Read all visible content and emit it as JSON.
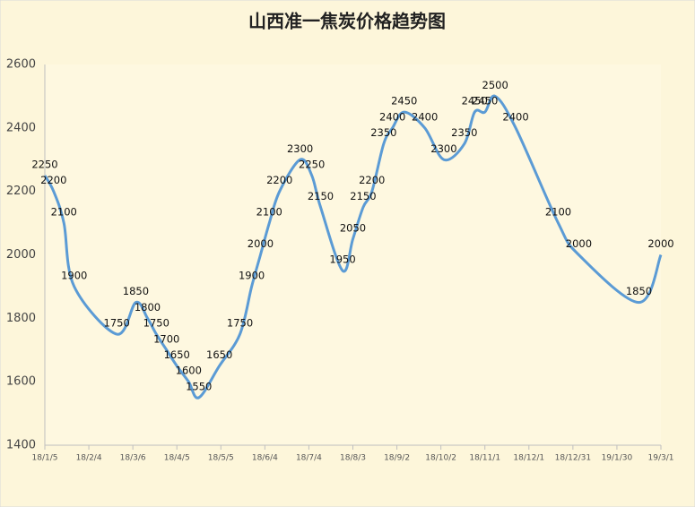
{
  "chart_data": {
    "type": "line",
    "title": "山西准一焦炭价格趋势图",
    "x": [
      "18/1/5",
      "18/1/11",
      "18/1/18",
      "18/1/25",
      "18/2/23",
      "18/3/8",
      "18/3/16",
      "18/3/22",
      "18/3/29",
      "18/4/5",
      "18/4/13",
      "18/4/20",
      "18/5/4",
      "18/5/18",
      "18/5/26",
      "18/6/1",
      "18/6/7",
      "18/6/14",
      "18/6/28",
      "18/7/6",
      "18/7/12",
      "18/7/27",
      "18/8/3",
      "18/8/10",
      "18/8/16",
      "18/8/24",
      "18/8/30",
      "18/9/7",
      "18/9/21",
      "18/10/4",
      "18/10/18",
      "18/10/25",
      "18/11/1",
      "18/11/8",
      "18/11/22",
      "18/12/21",
      "19/1/4",
      "19/2/14",
      "19/3/1"
    ],
    "series": [
      {
        "color": "#5b9bd5",
        "values": [
          2250,
          2200,
          2100,
          1900,
          1750,
          1850,
          1800,
          1750,
          1700,
          1650,
          1600,
          1550,
          1650,
          1750,
          1900,
          2000,
          2100,
          2200,
          2300,
          2250,
          2150,
          1950,
          2050,
          2150,
          2200,
          2350,
          2400,
          2450,
          2400,
          2300,
          2350,
          2450,
          2450,
          2500,
          2400,
          2100,
          2000,
          1850,
          2000
        ]
      }
    ],
    "xlim": [
      "18/1/5",
      "19/3/1"
    ],
    "xticks": [
      "18/1/5",
      "18/2/4",
      "18/3/6",
      "18/4/5",
      "18/5/5",
      "18/6/4",
      "18/7/4",
      "18/8/3",
      "18/9/2",
      "18/10/2",
      "18/11/1",
      "18/12/1",
      "18/12/31",
      "19/1/30",
      "19/3/1"
    ],
    "ylim": [
      1400,
      2600
    ],
    "yticks": [
      1400,
      1600,
      1800,
      2000,
      2200,
      2400,
      2600
    ],
    "grid": false
  }
}
